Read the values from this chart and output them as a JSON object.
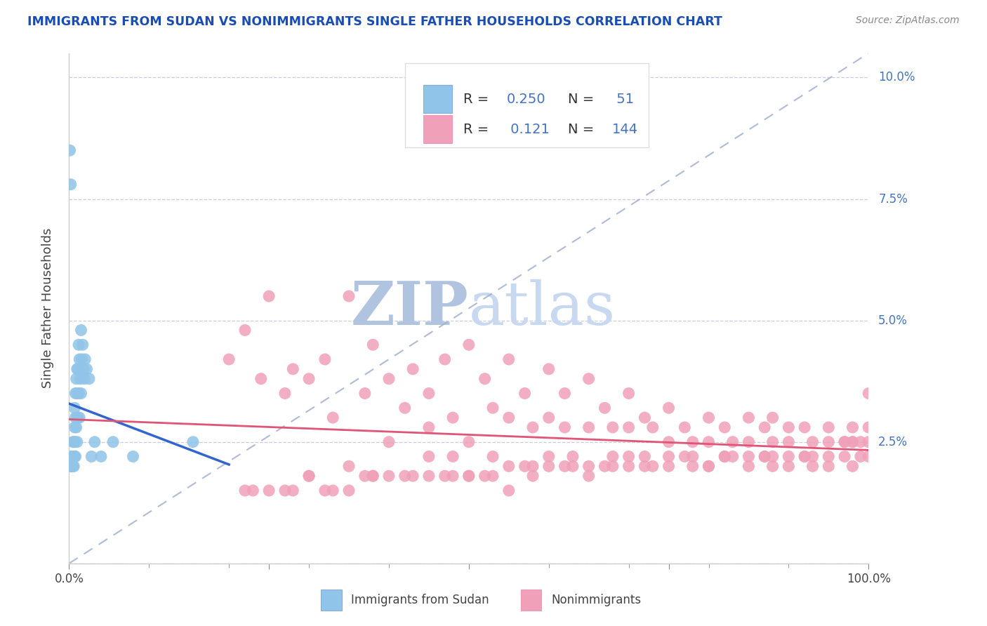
{
  "title": "IMMIGRANTS FROM SUDAN VS NONIMMIGRANTS SINGLE FATHER HOUSEHOLDS CORRELATION CHART",
  "source_text": "Source: ZipAtlas.com",
  "ylabel": "Single Father Households",
  "legend1_label": "Immigrants from Sudan",
  "legend2_label": "Nonimmigrants",
  "R1": 0.25,
  "N1": 51,
  "R2": 0.121,
  "N2": 144,
  "color1": "#90c4e8",
  "color2": "#f0a0b8",
  "line1_color": "#3366cc",
  "line2_color": "#e05575",
  "ref_line_color": "#a0b0cc",
  "title_color": "#1a4db3",
  "source_color": "#888888",
  "watermark_zip_color": "#b8cce8",
  "watermark_atlas_color": "#c8d8f0",
  "background_color": "#ffffff",
  "grid_color": "#c0c0d8",
  "tick_color": "#4472c4",
  "legend_text_color": "#333333",
  "legend_rn_color": "#4472c4",
  "xlim": [
    0.0,
    1.0
  ],
  "ylim": [
    0.0,
    0.105
  ],
  "x_ticks": [
    0.0,
    1.0
  ],
  "x_minor_ticks": [
    0.1,
    0.2,
    0.3,
    0.4,
    0.5,
    0.6,
    0.7,
    0.8,
    0.9
  ],
  "x_tick_labels": [
    "0.0%",
    "100.0%"
  ],
  "y_ticks": [
    0.0,
    0.025,
    0.05,
    0.075,
    0.1
  ],
  "y_tick_labels": [
    "",
    "2.5%",
    "5.0%",
    "7.5%",
    "10.0%"
  ],
  "scatter1_x": [
    0.001,
    0.002,
    0.002,
    0.003,
    0.003,
    0.003,
    0.004,
    0.004,
    0.004,
    0.005,
    0.005,
    0.005,
    0.005,
    0.006,
    0.006,
    0.006,
    0.007,
    0.007,
    0.007,
    0.007,
    0.008,
    0.008,
    0.008,
    0.009,
    0.009,
    0.01,
    0.01,
    0.01,
    0.01,
    0.011,
    0.011,
    0.012,
    0.012,
    0.013,
    0.013,
    0.014,
    0.015,
    0.015,
    0.016,
    0.017,
    0.018,
    0.019,
    0.02,
    0.022,
    0.025,
    0.028,
    0.032,
    0.04,
    0.055,
    0.08,
    0.155
  ],
  "scatter1_y": [
    0.085,
    0.078,
    0.02,
    0.022,
    0.022,
    0.02,
    0.022,
    0.022,
    0.02,
    0.025,
    0.022,
    0.022,
    0.02,
    0.025,
    0.022,
    0.02,
    0.032,
    0.028,
    0.025,
    0.022,
    0.035,
    0.03,
    0.022,
    0.038,
    0.028,
    0.04,
    0.035,
    0.03,
    0.025,
    0.04,
    0.03,
    0.045,
    0.035,
    0.042,
    0.03,
    0.038,
    0.048,
    0.035,
    0.042,
    0.045,
    0.04,
    0.038,
    0.042,
    0.04,
    0.038,
    0.022,
    0.025,
    0.022,
    0.025,
    0.022,
    0.025
  ],
  "scatter2_x": [
    0.2,
    0.22,
    0.24,
    0.25,
    0.27,
    0.28,
    0.3,
    0.3,
    0.32,
    0.33,
    0.35,
    0.35,
    0.37,
    0.38,
    0.38,
    0.4,
    0.4,
    0.42,
    0.43,
    0.45,
    0.45,
    0.45,
    0.47,
    0.48,
    0.48,
    0.5,
    0.5,
    0.5,
    0.52,
    0.53,
    0.53,
    0.55,
    0.55,
    0.55,
    0.57,
    0.58,
    0.58,
    0.6,
    0.6,
    0.6,
    0.62,
    0.62,
    0.63,
    0.65,
    0.65,
    0.65,
    0.67,
    0.68,
    0.68,
    0.7,
    0.7,
    0.7,
    0.72,
    0.72,
    0.73,
    0.75,
    0.75,
    0.75,
    0.77,
    0.78,
    0.78,
    0.8,
    0.8,
    0.8,
    0.82,
    0.82,
    0.83,
    0.85,
    0.85,
    0.85,
    0.87,
    0.87,
    0.88,
    0.88,
    0.88,
    0.9,
    0.9,
    0.9,
    0.92,
    0.92,
    0.93,
    0.93,
    0.95,
    0.95,
    0.95,
    0.97,
    0.97,
    0.98,
    0.98,
    0.98,
    0.99,
    0.99,
    1.0,
    1.0,
    1.0,
    0.25,
    0.3,
    0.35,
    0.4,
    0.45,
    0.5,
    0.55,
    0.6,
    0.65,
    0.7,
    0.75,
    0.8,
    0.85,
    0.9,
    0.95,
    1.0,
    0.23,
    0.33,
    0.43,
    0.53,
    0.63,
    0.73,
    0.83,
    0.93,
    0.28,
    0.38,
    0.48,
    0.58,
    0.68,
    0.78,
    0.88,
    0.98,
    0.22,
    0.32,
    0.42,
    0.52,
    0.62,
    0.72,
    0.82,
    0.92,
    0.27,
    0.37,
    0.47,
    0.57,
    0.67,
    0.77,
    0.87,
    0.97
  ],
  "scatter2_y": [
    0.042,
    0.048,
    0.038,
    0.055,
    0.035,
    0.04,
    0.038,
    0.018,
    0.042,
    0.03,
    0.055,
    0.02,
    0.035,
    0.045,
    0.018,
    0.025,
    0.038,
    0.032,
    0.04,
    0.035,
    0.028,
    0.022,
    0.042,
    0.03,
    0.022,
    0.045,
    0.025,
    0.018,
    0.038,
    0.032,
    0.022,
    0.042,
    0.03,
    0.02,
    0.035,
    0.028,
    0.018,
    0.04,
    0.03,
    0.022,
    0.035,
    0.028,
    0.022,
    0.038,
    0.028,
    0.02,
    0.032,
    0.028,
    0.022,
    0.035,
    0.028,
    0.022,
    0.03,
    0.022,
    0.028,
    0.032,
    0.025,
    0.02,
    0.028,
    0.025,
    0.02,
    0.03,
    0.025,
    0.02,
    0.028,
    0.022,
    0.025,
    0.03,
    0.025,
    0.02,
    0.028,
    0.022,
    0.03,
    0.025,
    0.02,
    0.028,
    0.025,
    0.02,
    0.028,
    0.022,
    0.025,
    0.02,
    0.028,
    0.025,
    0.02,
    0.025,
    0.022,
    0.028,
    0.025,
    0.02,
    0.025,
    0.022,
    0.028,
    0.025,
    0.035,
    0.015,
    0.018,
    0.015,
    0.018,
    0.018,
    0.018,
    0.015,
    0.02,
    0.018,
    0.02,
    0.022,
    0.02,
    0.022,
    0.022,
    0.022,
    0.022,
    0.015,
    0.015,
    0.018,
    0.018,
    0.02,
    0.02,
    0.022,
    0.022,
    0.015,
    0.018,
    0.018,
    0.02,
    0.02,
    0.022,
    0.022,
    0.025,
    0.015,
    0.015,
    0.018,
    0.018,
    0.02,
    0.02,
    0.022,
    0.022,
    0.015,
    0.018,
    0.018,
    0.02,
    0.02,
    0.022,
    0.022,
    0.025
  ]
}
